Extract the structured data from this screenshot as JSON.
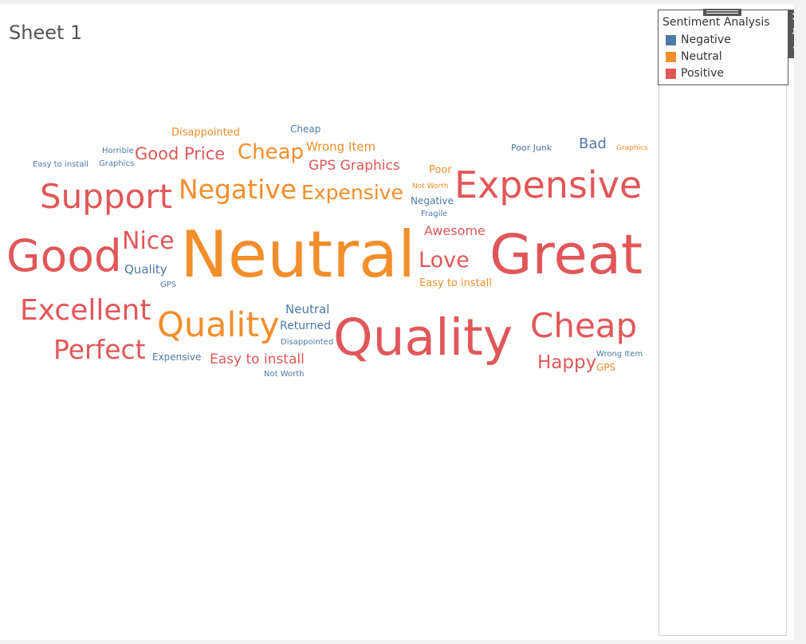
{
  "sheet": {
    "title": "Sheet 1"
  },
  "colors": {
    "negative": "#4e79a7",
    "neutral": "#f28e2b",
    "positive": "#e15759"
  },
  "legend": {
    "title": "Sentiment Analysis",
    "items": [
      {
        "label": "Negative",
        "color": "#4e79a7"
      },
      {
        "label": "Neutral",
        "color": "#f28e2b"
      },
      {
        "label": "Positive",
        "color": "#e15759"
      }
    ],
    "controls": {
      "close_icon": "close-icon",
      "pin_icon": "pin-icon",
      "menu_icon": "dropdown-icon"
    }
  },
  "words": [
    {
      "text": "Disappointed",
      "sentiment": "neutral"
    },
    {
      "text": "Cheap",
      "sentiment": "negative"
    },
    {
      "text": "Horrible",
      "sentiment": "negative"
    },
    {
      "text": "Good Price",
      "sentiment": "positive"
    },
    {
      "text": "Cheap",
      "sentiment": "neutral"
    },
    {
      "text": "Wrong Item",
      "sentiment": "neutral"
    },
    {
      "text": "Poor Junk",
      "sentiment": "negative"
    },
    {
      "text": "Bad",
      "sentiment": "negative"
    },
    {
      "text": "Graphics",
      "sentiment": "neutral"
    },
    {
      "text": "Easy to install",
      "sentiment": "negative"
    },
    {
      "text": "Graphics",
      "sentiment": "negative"
    },
    {
      "text": "GPS Graphics",
      "sentiment": "positive"
    },
    {
      "text": "Poor",
      "sentiment": "neutral"
    },
    {
      "text": "Support",
      "sentiment": "positive"
    },
    {
      "text": "Negative",
      "sentiment": "neutral"
    },
    {
      "text": "Expensive",
      "sentiment": "neutral"
    },
    {
      "text": "Not Worth",
      "sentiment": "neutral"
    },
    {
      "text": "Expensive",
      "sentiment": "positive"
    },
    {
      "text": "Negative",
      "sentiment": "negative"
    },
    {
      "text": "Fragile",
      "sentiment": "negative"
    },
    {
      "text": "Awesome",
      "sentiment": "positive"
    },
    {
      "text": "Good",
      "sentiment": "positive"
    },
    {
      "text": "Nice",
      "sentiment": "positive"
    },
    {
      "text": "Neutral",
      "sentiment": "neutral"
    },
    {
      "text": "Great",
      "sentiment": "positive"
    },
    {
      "text": "Quality",
      "sentiment": "negative"
    },
    {
      "text": "Love",
      "sentiment": "positive"
    },
    {
      "text": "GPS",
      "sentiment": "negative"
    },
    {
      "text": "Easy to install",
      "sentiment": "neutral"
    },
    {
      "text": "Excellent",
      "sentiment": "positive"
    },
    {
      "text": "Neutral",
      "sentiment": "negative"
    },
    {
      "text": "Quality",
      "sentiment": "neutral"
    },
    {
      "text": "Returned",
      "sentiment": "negative"
    },
    {
      "text": "Quality",
      "sentiment": "positive"
    },
    {
      "text": "Cheap",
      "sentiment": "positive"
    },
    {
      "text": "Disappointed",
      "sentiment": "negative"
    },
    {
      "text": "Perfect",
      "sentiment": "positive"
    },
    {
      "text": "Expensive",
      "sentiment": "negative"
    },
    {
      "text": "Easy to install",
      "sentiment": "positive"
    },
    {
      "text": "Happy",
      "sentiment": "positive"
    },
    {
      "text": "Wrong Item",
      "sentiment": "negative"
    },
    {
      "text": "GPS",
      "sentiment": "neutral"
    },
    {
      "text": "Not Worth",
      "sentiment": "negative"
    }
  ]
}
